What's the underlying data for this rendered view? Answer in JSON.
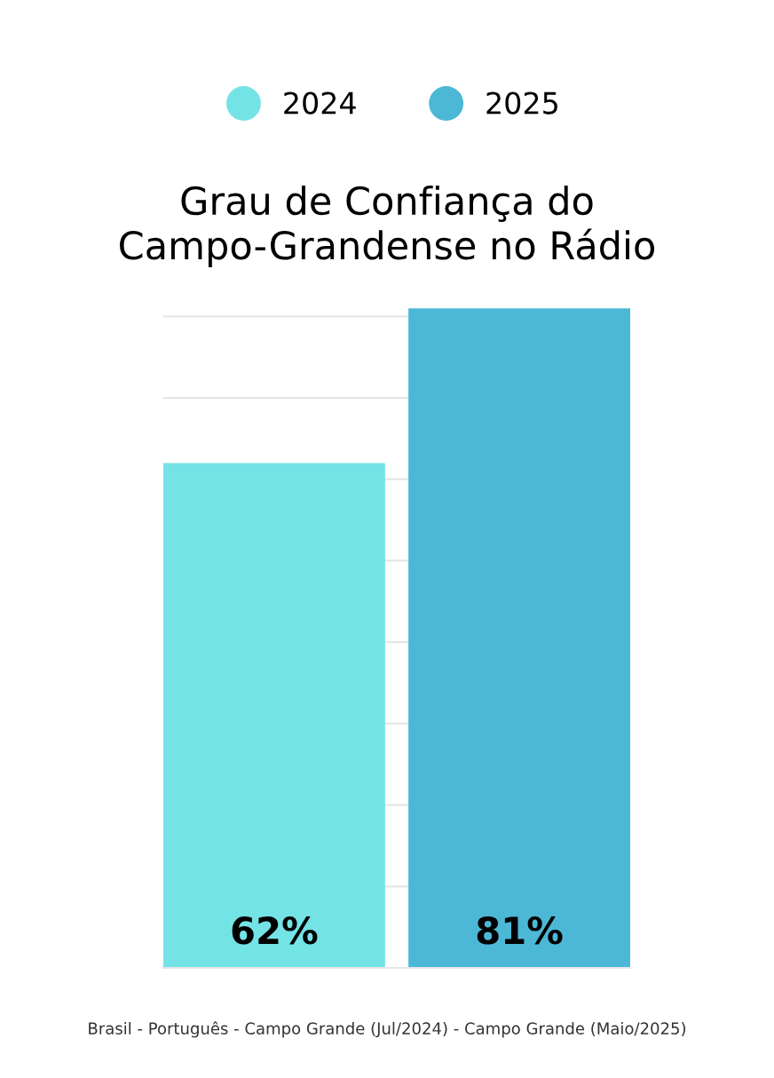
{
  "chart_data": {
    "type": "bar",
    "title": "Grau de Confiança do Campo-Grandense no Rádio",
    "categories": [
      null
    ],
    "series": [
      {
        "name": "2024",
        "color": "#74e3e6",
        "values": [
          62
        ],
        "value_labels": [
          "62%"
        ]
      },
      {
        "name": "2025",
        "color": "#4cb8d6",
        "values": [
          81
        ],
        "value_labels": [
          "81%"
        ]
      }
    ],
    "grid": "y",
    "legend": "top",
    "annotations": [
      "Brasil - Português - Campo Grande (Jul/2024) - Campo Grande (Maio/2025)"
    ]
  }
}
